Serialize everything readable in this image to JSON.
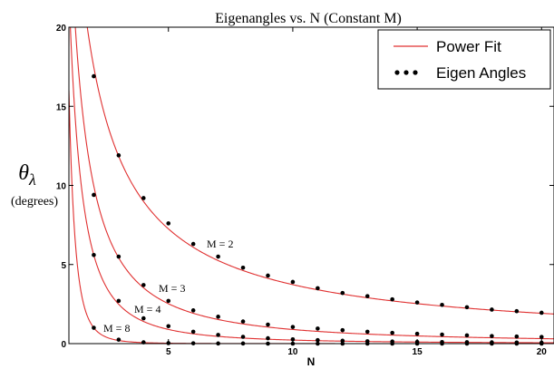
{
  "chart_data": {
    "type": "line",
    "title": "Eigenangles vs. N  (Constant M)",
    "xlabel": "N",
    "ylabel_symbol": "θ",
    "ylabel_subscript": "λ",
    "ylabel_units": "(degrees)",
    "xlim": [
      1,
      20.5
    ],
    "ylim": [
      0,
      20
    ],
    "xticks": [
      5,
      10,
      15,
      20
    ],
    "yticks": [
      0,
      5,
      10,
      15,
      20
    ],
    "legend": {
      "position": "top-right",
      "fit_label": "Power Fit",
      "points_label": "Eigen Angles"
    },
    "colors": {
      "fit": "#e03030",
      "points": "#000000"
    },
    "series": [
      {
        "label": "M = 2",
        "points": [
          [
            2,
            16.9
          ],
          [
            3,
            11.9
          ],
          [
            4,
            9.2
          ],
          [
            5,
            7.6
          ],
          [
            6,
            6.3
          ],
          [
            7,
            5.5
          ],
          [
            8,
            4.8
          ],
          [
            9,
            4.3
          ],
          [
            10,
            3.9
          ],
          [
            11,
            3.5
          ],
          [
            12,
            3.2
          ],
          [
            13,
            3.0
          ],
          [
            14,
            2.8
          ],
          [
            15,
            2.6
          ],
          [
            16,
            2.45
          ],
          [
            17,
            2.3
          ],
          [
            18,
            2.15
          ],
          [
            19,
            2.05
          ],
          [
            20,
            1.95
          ]
        ],
        "fit": {
          "a": 34.0,
          "b": 0.96
        }
      },
      {
        "label": "M = 3",
        "points": [
          [
            2,
            9.4
          ],
          [
            3,
            5.5
          ],
          [
            4,
            3.7
          ],
          [
            5,
            2.7
          ],
          [
            6,
            2.1
          ],
          [
            7,
            1.7
          ],
          [
            8,
            1.4
          ],
          [
            9,
            1.2
          ],
          [
            10,
            1.05
          ],
          [
            11,
            0.95
          ],
          [
            12,
            0.85
          ],
          [
            13,
            0.75
          ],
          [
            14,
            0.68
          ],
          [
            15,
            0.62
          ],
          [
            16,
            0.57
          ],
          [
            17,
            0.52
          ],
          [
            18,
            0.48
          ],
          [
            19,
            0.45
          ],
          [
            20,
            0.42
          ]
        ],
        "fit": {
          "a": 28.2,
          "b": 1.5
        }
      },
      {
        "label": "M = 4",
        "points": [
          [
            2,
            5.6
          ],
          [
            3,
            2.7
          ],
          [
            4,
            1.6
          ],
          [
            5,
            1.1
          ],
          [
            6,
            0.75
          ],
          [
            7,
            0.55
          ],
          [
            8,
            0.43
          ],
          [
            9,
            0.34
          ],
          [
            10,
            0.27
          ],
          [
            11,
            0.22
          ],
          [
            12,
            0.18
          ],
          [
            13,
            0.15
          ],
          [
            14,
            0.13
          ],
          [
            15,
            0.11
          ],
          [
            16,
            0.1
          ],
          [
            17,
            0.09
          ],
          [
            18,
            0.08
          ],
          [
            19,
            0.07
          ],
          [
            20,
            0.06
          ]
        ],
        "fit": {
          "a": 22.4,
          "b": 2.0
        }
      },
      {
        "label": "M = 8",
        "points": [
          [
            2,
            1.0
          ],
          [
            3,
            0.25
          ],
          [
            4,
            0.08
          ],
          [
            5,
            0.03
          ],
          [
            6,
            0.02
          ],
          [
            7,
            0.01
          ],
          [
            8,
            0.01
          ],
          [
            9,
            0.0
          ],
          [
            10,
            0.0
          ],
          [
            11,
            0.0
          ],
          [
            12,
            0.0
          ],
          [
            13,
            0.0
          ],
          [
            14,
            0.0
          ],
          [
            15,
            0.0
          ],
          [
            16,
            0.0
          ],
          [
            17,
            0.0
          ],
          [
            18,
            0.0
          ],
          [
            19,
            0.0
          ],
          [
            20,
            0.0
          ]
        ],
        "fit": {
          "a": 16.0,
          "b": 4.0
        }
      }
    ]
  }
}
